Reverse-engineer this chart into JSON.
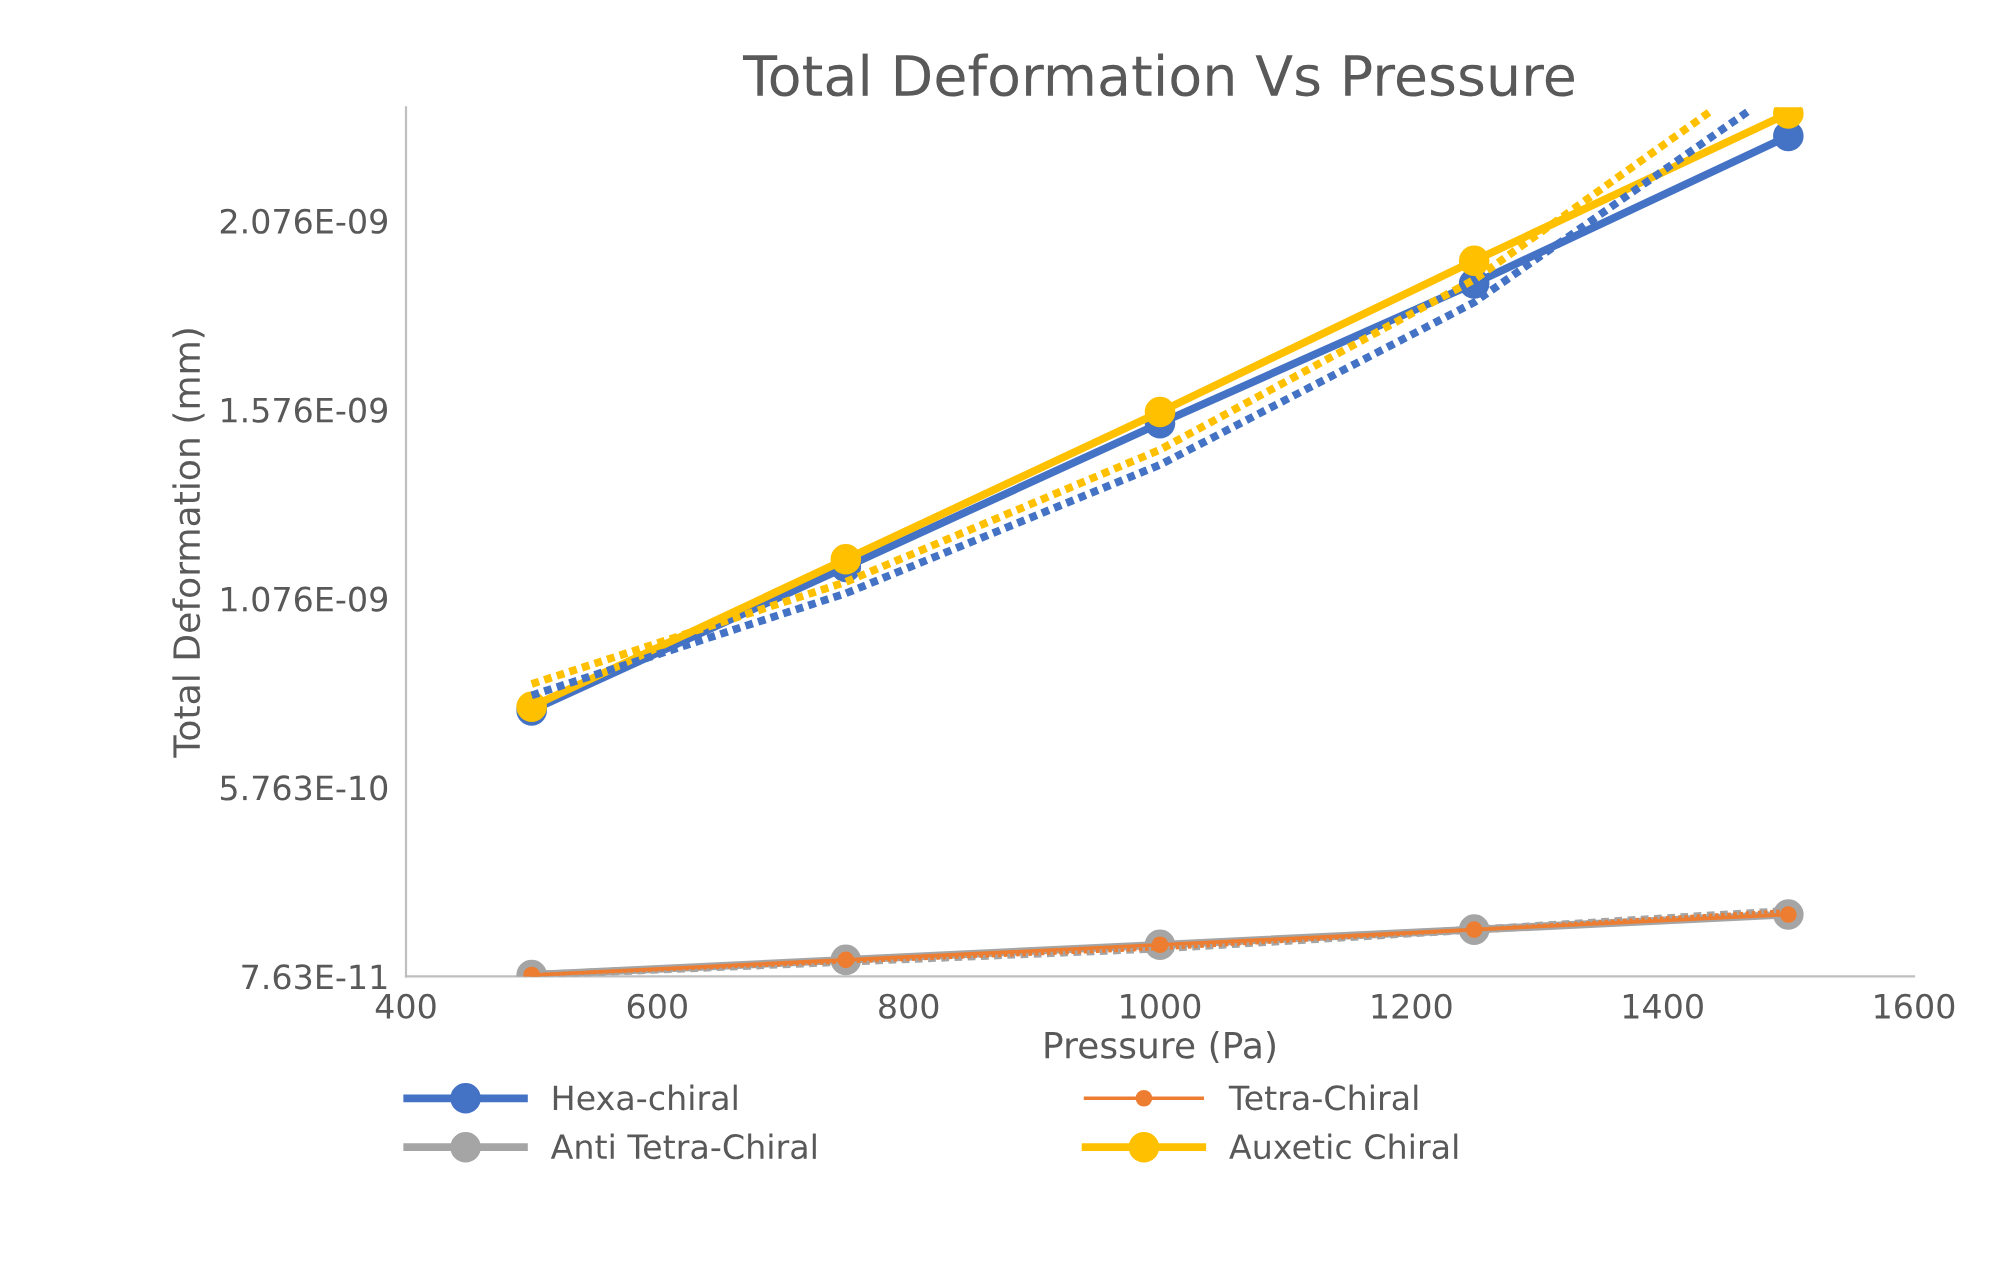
{
  "chart_data": {
    "type": "line",
    "title": "Total Deformation Vs Pressure",
    "xlabel": "Pressure (Pa)",
    "ylabel": "Total Deformation (mm)",
    "x": [
      500,
      750,
      1000,
      1250,
      1500
    ],
    "xlim": [
      400,
      1600
    ],
    "xticks": [
      400,
      600,
      800,
      1000,
      1200,
      1400,
      1600
    ],
    "ylim": [
      7.63e-11,
      2.376e-09
    ],
    "yticks": [
      {
        "value": 7.63e-11,
        "label": "7.63E-11"
      },
      {
        "value": 5.763e-10,
        "label": "5.763E-10"
      },
      {
        "value": 1.076e-09,
        "label": "1.076E-09"
      },
      {
        "value": 1.576e-09,
        "label": "1.576E-09"
      },
      {
        "value": 2.076e-09,
        "label": "2.076E-09"
      }
    ],
    "grid": false,
    "legend": "bottom",
    "marker": "circle",
    "line_style": "solid",
    "series": [
      {
        "name": "Hexa-chiral",
        "color": "#4472c4",
        "values": [
          7.8e-10,
          1.16e-09,
          1.54e-09,
          1.91e-09,
          2.3e-09
        ]
      },
      {
        "name": "Tetra-Chiral",
        "color": "#ed7d31",
        "values": [
          8e-11,
          1.2e-10,
          1.6e-10,
          2e-10,
          2.4e-10
        ]
      },
      {
        "name": "Anti Tetra-Chiral",
        "color": "#a5a5a5",
        "values": [
          8e-11,
          1.2e-10,
          1.6e-10,
          2e-10,
          2.4e-10
        ]
      },
      {
        "name": "Auxetic Chiral",
        "color": "#ffc000",
        "values": [
          7.9e-10,
          1.18e-09,
          1.57e-09,
          1.97e-09,
          2.36e-09
        ]
      },
      {
        "color": "#4472c4",
        "marker": "none",
        "line_style": "dotted",
        "x": [
          500,
          750,
          1000,
          1250,
          1470
        ],
        "values": [
          8.2e-10,
          1.09e-09,
          1.43e-09,
          1.86e-09,
          2.37e-09
        ]
      },
      {
        "color": "#ffc000",
        "marker": "none",
        "line_style": "dotted",
        "x": [
          500,
          750,
          1000,
          1250,
          1440
        ],
        "values": [
          8.5e-10,
          1.12e-09,
          1.47e-09,
          1.92e-09,
          2.37e-09
        ]
      },
      {
        "color": "#a5a5a5",
        "marker": "none",
        "line_style": "dotted",
        "x": [
          500,
          1000,
          1500
        ],
        "values": [
          8e-11,
          1.5e-10,
          2.5e-10
        ]
      },
      {
        "color": "#ed7d31",
        "marker": "none",
        "line_style": "dotted",
        "x": [
          500,
          1000,
          1500
        ],
        "values": [
          8e-11,
          1.5e-10,
          2.5e-10
        ]
      }
    ]
  }
}
